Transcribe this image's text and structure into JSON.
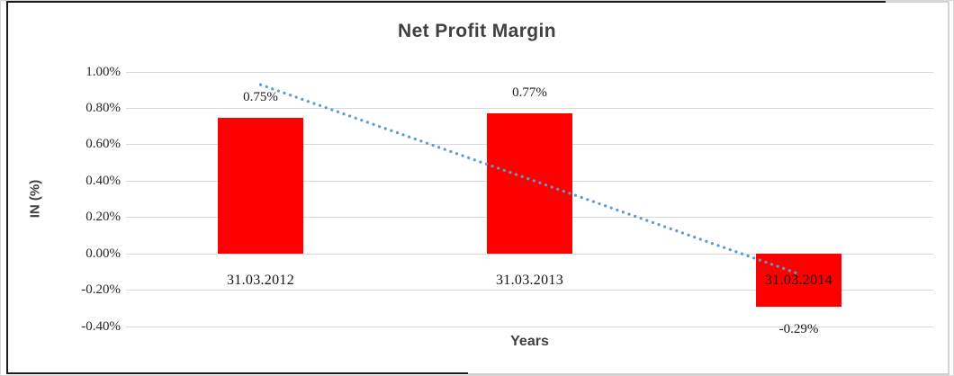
{
  "chart_data": {
    "type": "bar",
    "title": "Net Profit Margin",
    "xlabel": "Years",
    "ylabel": "IN (%)",
    "categories": [
      "31.03.2012",
      "31.03.2013",
      "31.03.2014"
    ],
    "values": [
      0.75,
      0.77,
      -0.29
    ],
    "data_labels": [
      "0.75%",
      "0.77%",
      "-0.29%"
    ],
    "bar_color": "#ff0000",
    "ylim": [
      -0.4,
      1.0
    ],
    "y_ticks": [
      1.0,
      0.8,
      0.6,
      0.4,
      0.2,
      0.0,
      -0.2,
      -0.4
    ],
    "y_tick_labels": [
      "1.00%",
      "0.80%",
      "0.60%",
      "0.40%",
      "0.20%",
      "0.00%",
      "-0.20%",
      "-0.40%"
    ],
    "grid": true,
    "gridline_color": "#d9d9d9",
    "legend": "none",
    "trendline": {
      "type": "linear",
      "style": "dotted",
      "color": "#5b9bd5",
      "value_at_first_category": 0.93,
      "value_at_last_category": -0.11
    }
  }
}
